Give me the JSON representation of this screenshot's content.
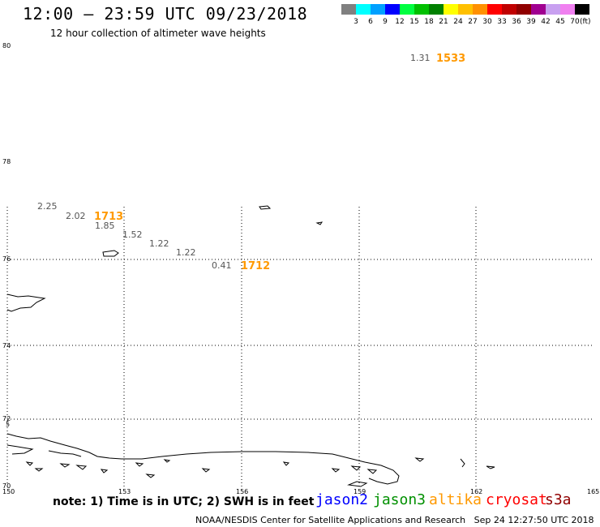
{
  "header": {
    "title": "12:00 — 23:59 UTC 09/23/2018",
    "subtitle": "12 hour collection of altimeter wave heights"
  },
  "legend": {
    "swatches": [
      {
        "color": "#808080",
        "label": ""
      },
      {
        "color": "#00ffff",
        "label": "3"
      },
      {
        "color": "#00a0ff",
        "label": "6"
      },
      {
        "color": "#0000ff",
        "label": "9"
      },
      {
        "color": "#00ff40",
        "label": "12"
      },
      {
        "color": "#00c000",
        "label": "15"
      },
      {
        "color": "#008000",
        "label": "18"
      },
      {
        "color": "#ffff00",
        "label": "21"
      },
      {
        "color": "#ffc000",
        "label": "24"
      },
      {
        "color": "#ff9000",
        "label": "27"
      },
      {
        "color": "#ff0000",
        "label": "30"
      },
      {
        "color": "#c00000",
        "label": "33"
      },
      {
        "color": "#900000",
        "label": "36"
      },
      {
        "color": "#a00090",
        "label": "39"
      },
      {
        "color": "#c8a0f0",
        "label": "42"
      },
      {
        "color": "#f080f0",
        "label": "45"
      },
      {
        "color": "#000000",
        "label": "70"
      }
    ],
    "unit": "(ft)"
  },
  "map": {
    "lat_labels": [
      "80",
      "78",
      "76",
      "74",
      "72",
      "70"
    ],
    "lon_labels": [
      "150",
      "153",
      "156",
      "159",
      "162",
      "165"
    ],
    "inner_lat_label": "5"
  },
  "observations": [
    {
      "value": "1.31",
      "color": "#555555"
    },
    {
      "value": "1533",
      "color": "#ff9900"
    },
    {
      "value": "2.25",
      "color": "#555555"
    },
    {
      "value": "2.02",
      "color": "#555555"
    },
    {
      "value": "1713",
      "color": "#ff9900"
    },
    {
      "value": "1.85",
      "color": "#555555"
    },
    {
      "value": "1.52",
      "color": "#555555"
    },
    {
      "value": "1.22",
      "color": "#555555"
    },
    {
      "value": "1.22",
      "color": "#555555"
    },
    {
      "value": "0.41",
      "color": "#555555"
    },
    {
      "value": "1712",
      "color": "#ff9900"
    }
  ],
  "footer": {
    "note": "note: 1) Time is in UTC; 2) SWH is in feet",
    "satellites": [
      {
        "name": "jason2",
        "color": "#0000ff"
      },
      {
        "name": "jason3",
        "color": "#009000"
      },
      {
        "name": "altika",
        "color": "#ff9900"
      },
      {
        "name": "cryosat",
        "color": "#ff0000"
      },
      {
        "name": "s3a",
        "color": "#900000"
      }
    ],
    "credit": "NOAA/NESDIS Center for Satellite Applications and Research   Sep 24 12:27:50 UTC 2018"
  }
}
